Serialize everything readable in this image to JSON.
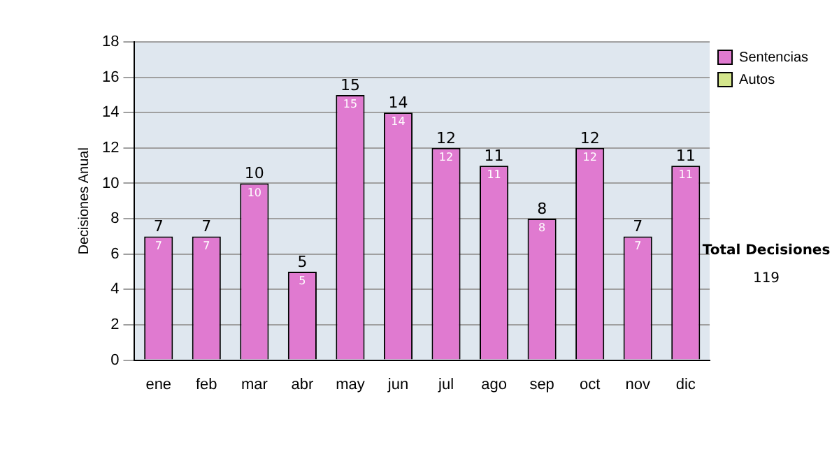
{
  "chart_data": {
    "type": "bar",
    "ylabel": "Decisiones Anual",
    "categories": [
      "ene",
      "feb",
      "mar",
      "abr",
      "may",
      "jun",
      "jul",
      "ago",
      "sep",
      "oct",
      "nov",
      "dic"
    ],
    "series": [
      {
        "name": "Sentencias",
        "color": "#e07ad0",
        "values": [
          7,
          7,
          10,
          5,
          15,
          14,
          12,
          11,
          8,
          12,
          7,
          11
        ]
      },
      {
        "name": "Autos",
        "color": "#d4e68c",
        "values": [
          null,
          null,
          null,
          null,
          null,
          null,
          null,
          null,
          null,
          null,
          null,
          null
        ]
      }
    ],
    "ylim": [
      0,
      18
    ],
    "yticks": [
      0,
      2,
      4,
      6,
      8,
      10,
      12,
      14,
      16,
      18
    ],
    "grid": "y",
    "legend": "right",
    "data_labels": true,
    "annotations": [
      "Total Decisiones",
      "119",
      {
        "text": "7",
        "x": "ene",
        "y": 7
      },
      {
        "text": "7",
        "x": "feb",
        "y": 7
      },
      {
        "text": "10",
        "x": "mar",
        "y": 10
      },
      {
        "text": "5",
        "x": "abr",
        "y": 5
      },
      {
        "text": "15",
        "x": "may",
        "y": 15
      },
      {
        "text": "14",
        "x": "jun",
        "y": 14
      },
      {
        "text": "12",
        "x": "jul",
        "y": 12
      },
      {
        "text": "11",
        "x": "ago",
        "y": 11
      },
      {
        "text": "8",
        "x": "sep",
        "y": 8
      },
      {
        "text": "12",
        "x": "oct",
        "y": 12
      },
      {
        "text": "7",
        "x": "nov",
        "y": 7
      },
      {
        "text": "11",
        "x": "dic",
        "y": 11
      }
    ]
  }
}
